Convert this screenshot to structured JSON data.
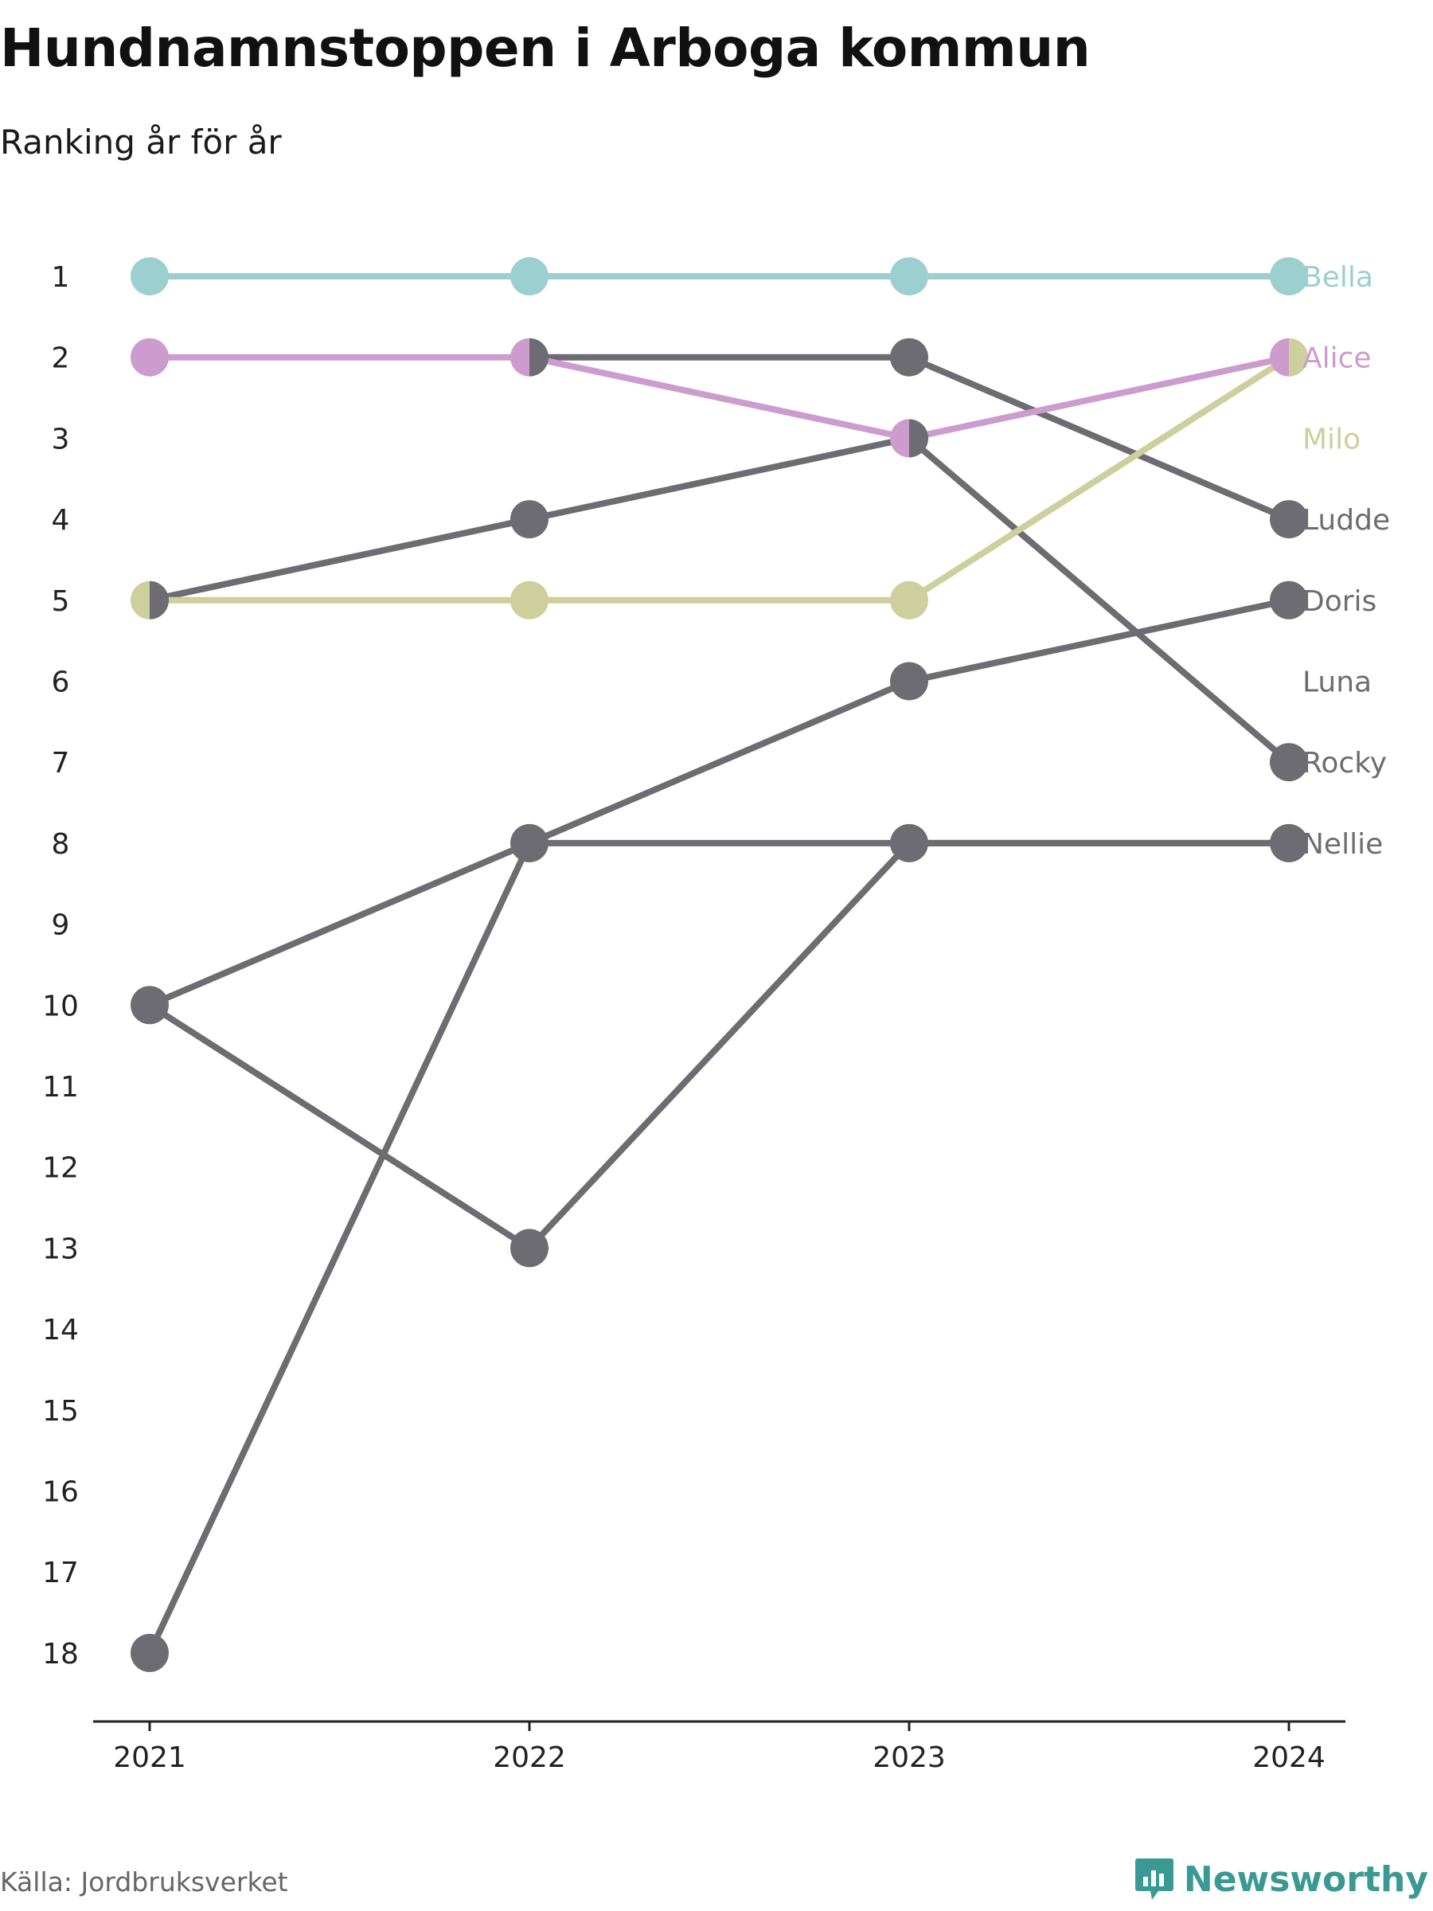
{
  "header": {
    "title": "Hundnamnstoppen i Arboga kommun",
    "subtitle": "Ranking år för år"
  },
  "footer": {
    "source": "Källa: Jordbruksverket",
    "brand": "Newsworthy",
    "brand_color": "#3a9a93",
    "brand_icon": "bar-chart-speech-bubble-icon"
  },
  "chart_data": {
    "type": "line",
    "subtype": "bump-chart",
    "x": [
      "2021",
      "2022",
      "2023",
      "2024"
    ],
    "y_ticks": [
      "1",
      "2",
      "3",
      "4",
      "5",
      "6",
      "7",
      "8",
      "9",
      "10",
      "11",
      "12",
      "13",
      "14",
      "15",
      "16",
      "17",
      "18"
    ],
    "ylim": [
      1,
      18
    ],
    "y_reversed": true,
    "grid": false,
    "legend": "direct labels at right end",
    "series": [
      {
        "name": "Bella",
        "values": [
          1,
          1,
          1,
          1
        ],
        "color": "#9ccfcf",
        "label_color": "#9ccfcf"
      },
      {
        "name": "Alice",
        "values": [
          2,
          2,
          3,
          2
        ],
        "color": "#cc9ccf",
        "label_color": "#cc9ccf"
      },
      {
        "name": "Milo",
        "values": [
          5,
          5,
          5,
          2
        ],
        "color": "#cdcf9c",
        "label_color": "#cdcf9c"
      },
      {
        "name": "Ludde",
        "values": [
          null,
          2,
          2,
          4
        ],
        "color": "#6d6c72",
        "label_color": "#6d6c72"
      },
      {
        "name": "Doris",
        "values": [
          10,
          8,
          6,
          5
        ],
        "color": "#6d6c72",
        "label_color": "#6d6c72"
      },
      {
        "name": "Luna",
        "values": [
          10,
          13,
          8,
          8
        ],
        "color": "#6d6c72",
        "label_color": "#6d6c72"
      },
      {
        "name": "Rocky",
        "values": [
          5,
          4,
          3,
          7
        ],
        "color": "#6d6c72",
        "label_color": "#6d6c72"
      },
      {
        "name": "Nellie",
        "values": [
          18,
          8,
          8,
          8
        ],
        "color": "#6d6c72",
        "label_color": "#6d6c72"
      }
    ],
    "end_labels": [
      {
        "text": "Bella",
        "rank": 1,
        "color": "#9ccfcf"
      },
      {
        "text": "Alice",
        "rank": 2,
        "color": "#cc9ccf"
      },
      {
        "text": "Milo",
        "rank": 3,
        "color": "#cdcf9c"
      },
      {
        "text": "Ludde",
        "rank": 4,
        "color": "#6d6c72"
      },
      {
        "text": "Doris",
        "rank": 5,
        "color": "#6d6c72"
      },
      {
        "text": "Luna",
        "rank": 6,
        "color": "#6d6c72"
      },
      {
        "text": "Rocky",
        "rank": 7,
        "color": "#6d6c72"
      },
      {
        "text": "Nellie",
        "rank": 8,
        "color": "#6d6c72"
      }
    ]
  }
}
